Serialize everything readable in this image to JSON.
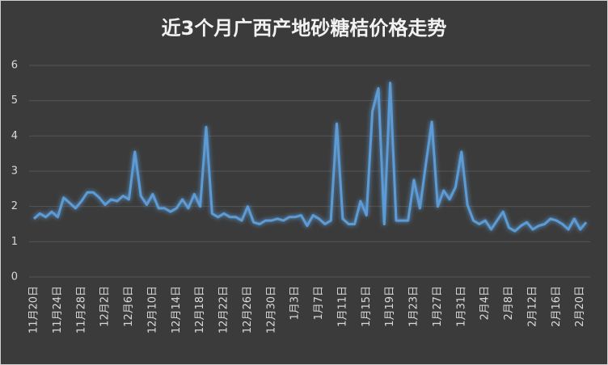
{
  "chart_data": {
    "type": "line",
    "title": "近3个月广西产地砂糖桔价格走势",
    "categories": [
      "11月20日",
      null,
      null,
      null,
      "11月24日",
      null,
      null,
      null,
      "11月28日",
      null,
      null,
      null,
      "12月2日",
      null,
      null,
      null,
      "12月6日",
      null,
      null,
      null,
      "12月10日",
      null,
      null,
      null,
      "12月14日",
      null,
      null,
      null,
      "12月18日",
      null,
      null,
      null,
      "12月22日",
      null,
      null,
      null,
      "12月26日",
      null,
      null,
      null,
      "12月30日",
      null,
      null,
      null,
      "1月3日",
      null,
      null,
      null,
      "1月7日",
      null,
      null,
      null,
      "1月11日",
      null,
      null,
      null,
      "1月15日",
      null,
      null,
      null,
      "1月19日",
      null,
      null,
      null,
      "1月23日",
      null,
      null,
      null,
      "1月27日",
      null,
      null,
      null,
      "1月31日",
      null,
      null,
      null,
      "2月4日",
      null,
      null,
      null,
      "2月8日",
      null,
      null,
      null,
      "2月12日",
      null,
      null,
      null,
      "2月16日",
      null,
      null,
      null,
      "2月20日",
      null
    ],
    "values": [
      1.65,
      1.8,
      1.7,
      1.85,
      1.7,
      2.25,
      2.1,
      1.95,
      2.15,
      2.4,
      2.4,
      2.25,
      2.05,
      2.2,
      2.15,
      2.3,
      2.2,
      3.55,
      2.3,
      2.05,
      2.35,
      1.95,
      1.95,
      1.85,
      1.95,
      2.2,
      1.95,
      2.35,
      2.0,
      4.25,
      1.8,
      1.7,
      1.8,
      1.7,
      1.7,
      1.6,
      2.0,
      1.55,
      1.5,
      1.6,
      1.6,
      1.65,
      1.6,
      1.7,
      1.7,
      1.75,
      1.45,
      1.75,
      1.65,
      1.5,
      1.6,
      4.35,
      1.65,
      1.5,
      1.5,
      2.15,
      1.75,
      4.7,
      5.35,
      1.5,
      5.5,
      1.6,
      1.6,
      1.6,
      2.75,
      1.95,
      3.2,
      4.4,
      2.0,
      2.45,
      2.2,
      2.55,
      3.55,
      2.05,
      1.6,
      1.5,
      1.6,
      1.35,
      1.6,
      1.85,
      1.4,
      1.3,
      1.45,
      1.55,
      1.35,
      1.45,
      1.5,
      1.65,
      1.6,
      1.5,
      1.35,
      1.65,
      1.35,
      1.55
    ],
    "color": "#5b9bd5",
    "ylim": [
      0,
      6
    ],
    "yticks": [
      0,
      1,
      2,
      3,
      4,
      5,
      6
    ],
    "grid": true
  }
}
